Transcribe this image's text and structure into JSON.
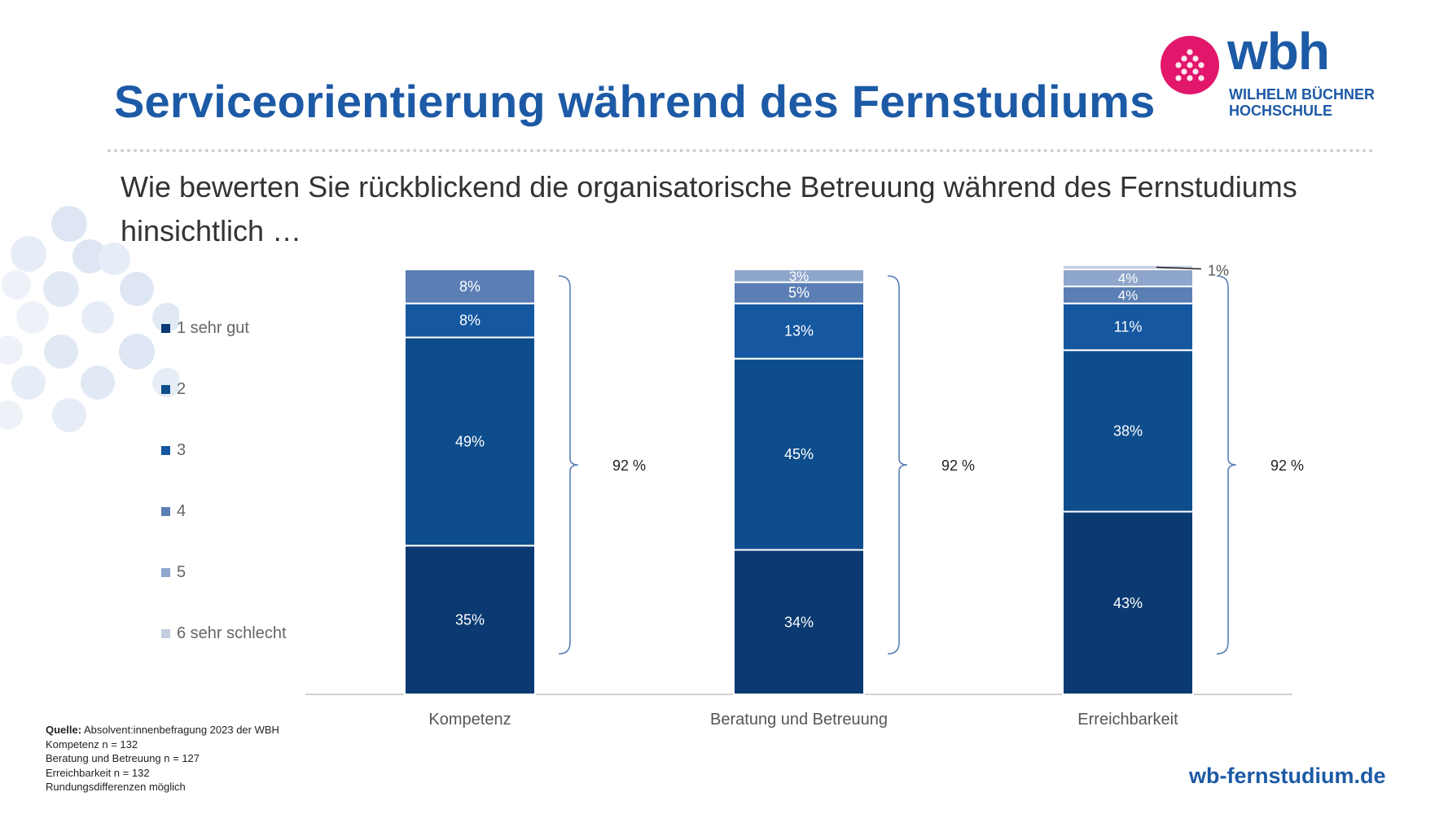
{
  "page": {
    "title": "Serviceorientierung während des Fernstudiums",
    "question": "Wie bewerten Sie rückblickend die organisatorische Betreuung während des Fernstudiums hinsichtlich …",
    "website": "wb-fernstudium.de"
  },
  "logo": {
    "wordmark": "wbh",
    "line1": "WILHELM BÜCHNER",
    "line2": "HOCHSCHULE",
    "accent_color": "#e2176c",
    "brand_color": "#1d5aa6"
  },
  "legend": [
    {
      "label": "1 sehr gut",
      "color": "#0b3a72"
    },
    {
      "label": "2",
      "color": "#0e4d8c"
    },
    {
      "label": "3",
      "color": "#1557a0"
    },
    {
      "label": "4",
      "color": "#5b7fb5"
    },
    {
      "label": "5",
      "color": "#8fa6cc"
    },
    {
      "label": "6 sehr schlecht",
      "color": "#c3cde0"
    }
  ],
  "source": {
    "label": "Quelle:",
    "text": "Absolvent:innenbefragung 2023 der WBH",
    "lines": [
      "Kompetenz n = 132",
      "Beratung und Betreuung n = 127",
      "Erreichbarkeit n = 132",
      "Rundungsdifferenzen möglich"
    ]
  },
  "chart_data": {
    "type": "bar",
    "stacked": true,
    "categories": [
      "Kompetenz",
      "Beratung und Betreuung",
      "Erreichbarkeit"
    ],
    "series": [
      {
        "name": "1 sehr gut",
        "values": [
          35,
          34,
          43
        ],
        "labels": [
          "35%",
          "34%",
          "43%"
        ],
        "color": "#0b3a72"
      },
      {
        "name": "2",
        "values": [
          49,
          45,
          38
        ],
        "labels": [
          "49%",
          "45%",
          "38%"
        ],
        "color": "#0e4d8c"
      },
      {
        "name": "3",
        "values": [
          8,
          13,
          11
        ],
        "labels": [
          "8%",
          "13%",
          "11%"
        ],
        "color": "#1557a0"
      },
      {
        "name": "4",
        "values": [
          8,
          5,
          4
        ],
        "labels": [
          "8%",
          "5%",
          "4%"
        ],
        "color": "#5b7fb5"
      },
      {
        "name": "5",
        "values": [
          0,
          3,
          4
        ],
        "labels": [
          "",
          "3%",
          "4%"
        ],
        "color": "#8fa6cc"
      },
      {
        "name": "6 sehr schlecht",
        "values": [
          0,
          0,
          1
        ],
        "labels": [
          "",
          "",
          "1%"
        ],
        "color": "#c3cde0"
      }
    ],
    "brackets": [
      {
        "category": "Kompetenz",
        "label": "92 %"
      },
      {
        "category": "Beratung und Betreuung",
        "label": "92 %"
      },
      {
        "category": "Erreichbarkeit",
        "label": "92 %"
      }
    ],
    "ylim": [
      0,
      100
    ],
    "grid": false,
    "legend_position": "left"
  }
}
